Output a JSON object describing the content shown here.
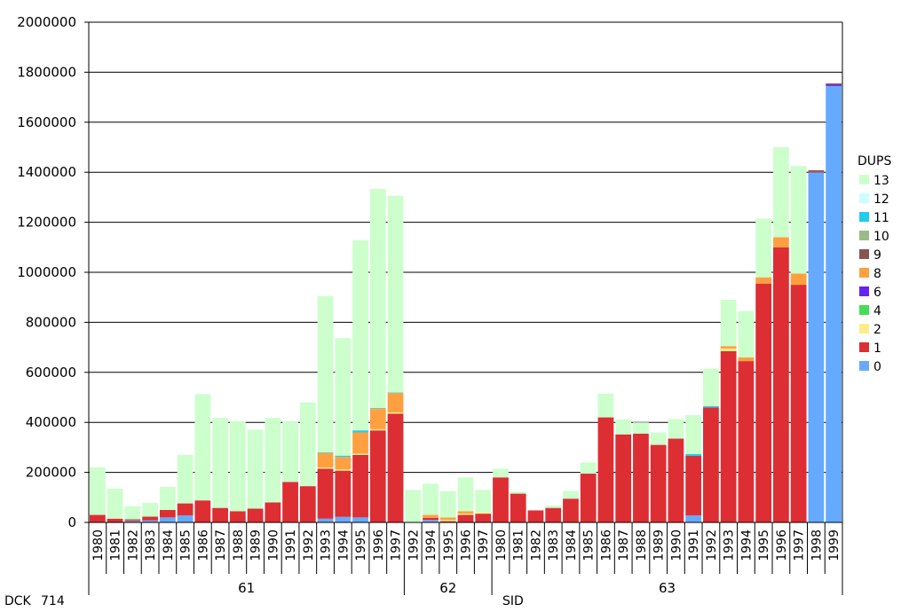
{
  "chart_data": {
    "type": "bar",
    "stacked": true,
    "ylim": [
      0,
      2000000
    ],
    "y_ticks": [
      0,
      200000,
      400000,
      600000,
      800000,
      1000000,
      1200000,
      1400000,
      1600000,
      1800000,
      2000000
    ],
    "grid": true,
    "legend_position": "right",
    "legend_title": "DUPS",
    "corner_labels": {
      "row1": "DCK",
      "row1_value": "714",
      "row2": "SID"
    },
    "groups": [
      {
        "label": "61",
        "count": 18
      },
      {
        "label": "62",
        "count": 5
      },
      {
        "label": "63",
        "count": 20
      }
    ],
    "categories": [
      "1980",
      "1981",
      "1982",
      "1983",
      "1984",
      "1985",
      "1986",
      "1987",
      "1988",
      "1989",
      "1990",
      "1991",
      "1992",
      "1993",
      "1994",
      "1995",
      "1996",
      "1997",
      "1992",
      "1994",
      "1995",
      "1996",
      "1997",
      "1980",
      "1981",
      "1982",
      "1983",
      "1984",
      "1985",
      "1986",
      "1987",
      "1988",
      "1989",
      "1990",
      "1991",
      "1992",
      "1993",
      "1994",
      "1995",
      "1996",
      "1997",
      "1998",
      "1999"
    ],
    "series": [
      {
        "name": "0",
        "color": "#66aaff",
        "values": [
          0,
          0,
          5000,
          8000,
          20000,
          28000,
          0,
          0,
          0,
          0,
          0,
          0,
          0,
          15000,
          22000,
          20000,
          0,
          0,
          0,
          10000,
          0,
          0,
          0,
          0,
          0,
          0,
          0,
          0,
          0,
          0,
          0,
          0,
          0,
          0,
          28000,
          0,
          0,
          0,
          0,
          0,
          0,
          1400000,
          1745000
        ]
      },
      {
        "name": "1",
        "color": "#dd2e33",
        "values": [
          30000,
          15000,
          5000,
          15000,
          30000,
          48000,
          88000,
          58000,
          45000,
          55000,
          80000,
          162000,
          145000,
          200000,
          185000,
          250000,
          368000,
          435000,
          0,
          8000,
          5000,
          30000,
          35000,
          180000,
          115000,
          48000,
          58000,
          95000,
          195000,
          420000,
          352000,
          355000,
          310000,
          335000,
          238000,
          460000,
          685000,
          645000,
          955000,
          1100000,
          950000,
          3000,
          0
        ]
      },
      {
        "name": "2",
        "color": "#ffee88",
        "values": [
          0,
          0,
          0,
          0,
          0,
          0,
          0,
          0,
          0,
          0,
          0,
          0,
          0,
          5000,
          5000,
          5000,
          5000,
          5000,
          0,
          0,
          5000,
          5000,
          5000,
          0,
          0,
          0,
          0,
          0,
          0,
          0,
          0,
          0,
          0,
          0,
          0,
          0,
          10000,
          0,
          0,
          0,
          0,
          0,
          0
        ]
      },
      {
        "name": "4",
        "color": "#44dd55",
        "values": [
          0,
          0,
          0,
          0,
          0,
          0,
          0,
          0,
          0,
          0,
          0,
          0,
          0,
          0,
          0,
          0,
          0,
          0,
          0,
          0,
          0,
          0,
          0,
          0,
          0,
          0,
          0,
          0,
          0,
          0,
          0,
          0,
          0,
          0,
          0,
          0,
          0,
          0,
          0,
          0,
          0,
          0,
          0
        ]
      },
      {
        "name": "6",
        "color": "#6622ee",
        "values": [
          0,
          0,
          0,
          0,
          0,
          0,
          0,
          0,
          0,
          0,
          0,
          0,
          0,
          0,
          0,
          0,
          0,
          0,
          0,
          0,
          0,
          0,
          0,
          0,
          0,
          0,
          0,
          0,
          0,
          0,
          0,
          0,
          0,
          0,
          0,
          0,
          0,
          0,
          0,
          0,
          0,
          0,
          5000
        ]
      },
      {
        "name": "8",
        "color": "#ffa040",
        "values": [
          0,
          0,
          0,
          0,
          0,
          0,
          0,
          0,
          0,
          0,
          0,
          0,
          0,
          55000,
          50000,
          85000,
          80000,
          75000,
          0,
          12000,
          10000,
          10000,
          0,
          0,
          0,
          0,
          0,
          0,
          0,
          0,
          0,
          0,
          0,
          0,
          0,
          0,
          10000,
          15000,
          25000,
          40000,
          45000,
          0,
          0
        ]
      },
      {
        "name": "9",
        "color": "#885555",
        "values": [
          0,
          0,
          0,
          0,
          0,
          0,
          0,
          0,
          0,
          0,
          0,
          0,
          0,
          0,
          0,
          0,
          0,
          0,
          0,
          0,
          0,
          0,
          0,
          0,
          0,
          0,
          0,
          0,
          0,
          0,
          0,
          0,
          0,
          0,
          0,
          0,
          0,
          0,
          0,
          0,
          0,
          5000,
          5000
        ]
      },
      {
        "name": "10",
        "color": "#99bb88",
        "values": [
          0,
          0,
          5000,
          0,
          0,
          0,
          0,
          0,
          0,
          0,
          0,
          0,
          0,
          5000,
          0,
          0,
          5000,
          5000,
          0,
          0,
          0,
          0,
          0,
          0,
          0,
          0,
          0,
          0,
          0,
          0,
          0,
          0,
          0,
          0,
          0,
          0,
          0,
          0,
          0,
          0,
          0,
          0,
          0
        ]
      },
      {
        "name": "11",
        "color": "#22ccee",
        "values": [
          0,
          0,
          0,
          0,
          0,
          0,
          0,
          0,
          0,
          0,
          0,
          0,
          0,
          0,
          5000,
          8000,
          0,
          0,
          0,
          0,
          0,
          0,
          0,
          0,
          0,
          0,
          0,
          0,
          0,
          0,
          0,
          0,
          0,
          0,
          8000,
          5000,
          0,
          0,
          0,
          0,
          0,
          0,
          0
        ]
      },
      {
        "name": "12",
        "color": "#ccffff",
        "values": [
          0,
          0,
          0,
          0,
          0,
          0,
          0,
          0,
          0,
          0,
          0,
          0,
          0,
          0,
          0,
          0,
          0,
          0,
          0,
          0,
          0,
          0,
          0,
          0,
          0,
          0,
          0,
          0,
          0,
          0,
          0,
          0,
          0,
          0,
          0,
          0,
          0,
          0,
          0,
          0,
          0,
          0,
          0
        ]
      },
      {
        "name": "13",
        "color": "#ccffcc",
        "values": [
          190000,
          120000,
          50000,
          55000,
          92000,
          194000,
          425000,
          360000,
          360000,
          315000,
          338000,
          240000,
          335000,
          625000,
          470000,
          760000,
          875000,
          785000,
          130000,
          125000,
          105000,
          135000,
          90000,
          35000,
          8000,
          0,
          10000,
          30000,
          45000,
          95000,
          60000,
          45000,
          50000,
          78000,
          155000,
          150000,
          185000,
          185000,
          235000,
          360000,
          430000,
          0,
          0
        ]
      }
    ],
    "legend_order": [
      "13",
      "12",
      "11",
      "10",
      "9",
      "8",
      "6",
      "4",
      "2",
      "1",
      "0"
    ]
  }
}
